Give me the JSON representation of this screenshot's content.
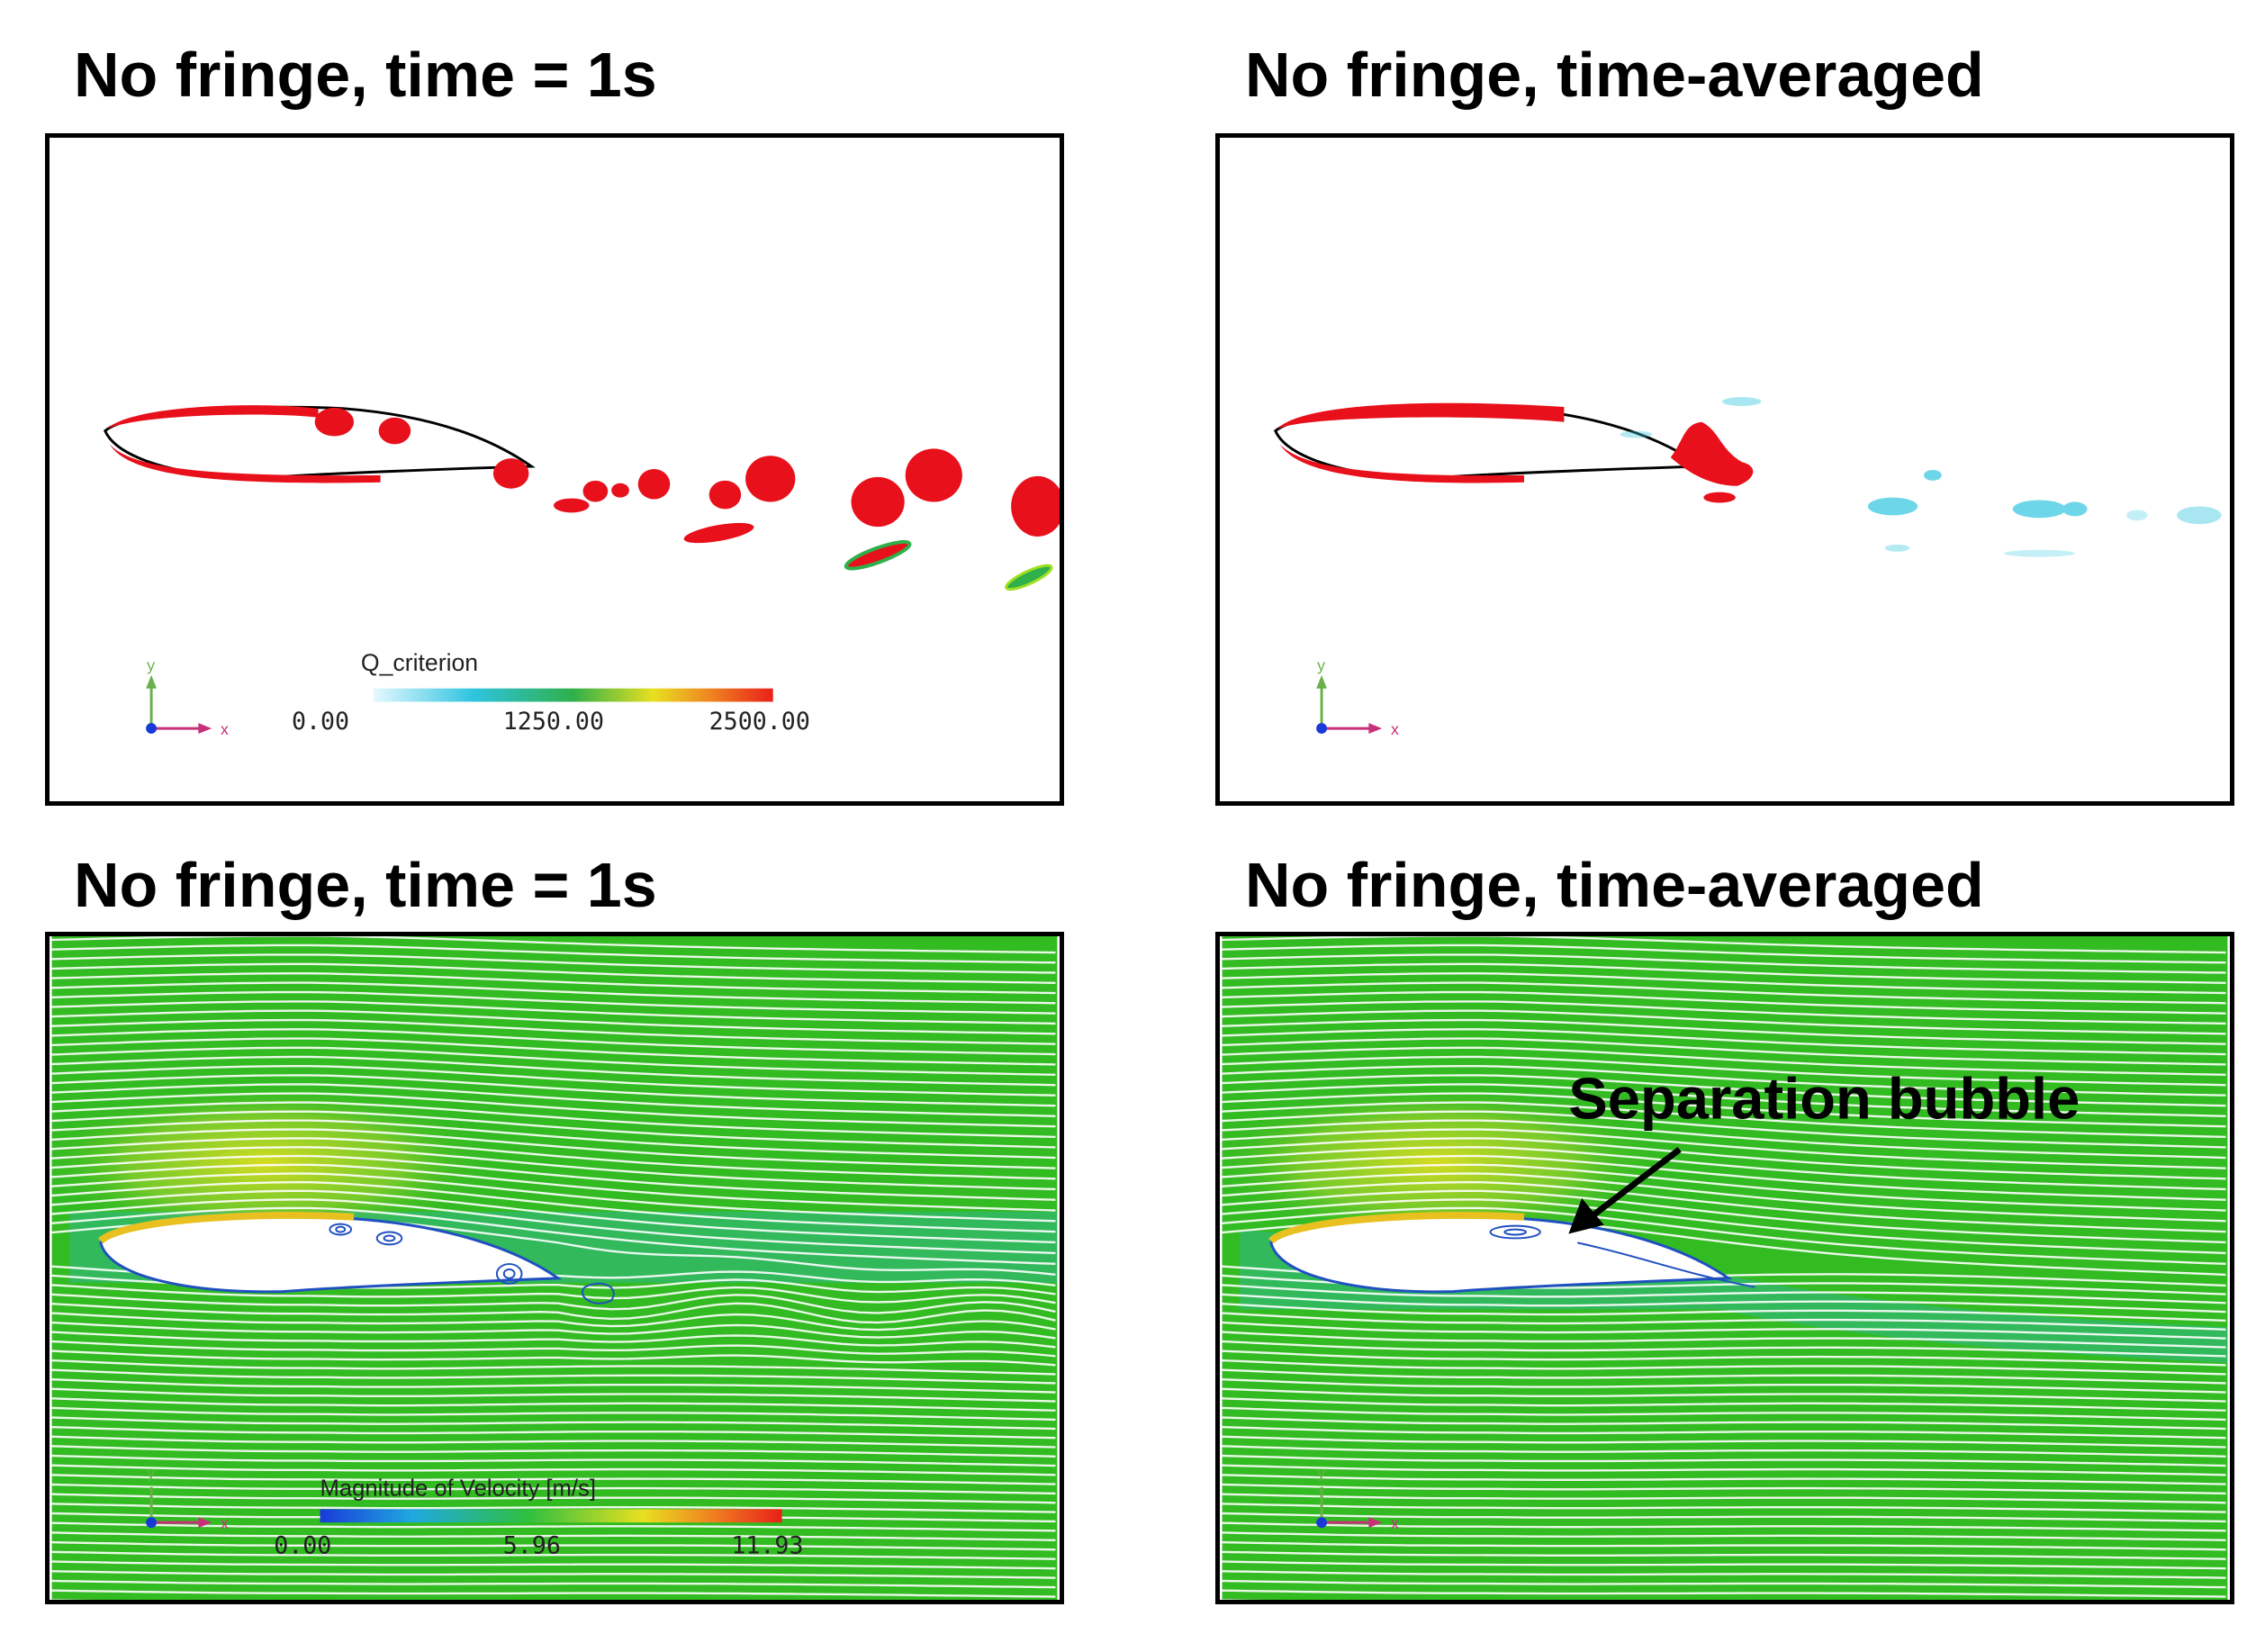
{
  "panels": {
    "top_left": {
      "title": "No fringe, time = 1s"
    },
    "top_right": {
      "title": "No fringe, time-averaged"
    },
    "bottom_left": {
      "title": "No fringe, time = 1s"
    },
    "bottom_right": {
      "title": "No fringe, time-averaged"
    }
  },
  "q_legend": {
    "title": "Q_criterion",
    "ticks": [
      "0.00",
      "1250.00",
      "2500.00"
    ],
    "colors": [
      "#e6f8ff",
      "#2ec4e0",
      "#2fb04a",
      "#e8e020",
      "#f08020",
      "#e8201a"
    ]
  },
  "v_legend": {
    "title": "Magnitude of Velocity [m/s]",
    "ticks": [
      "0.00",
      "5.96",
      "11.93"
    ],
    "colors": [
      "#1a3ad8",
      "#1fa8e0",
      "#2fbf40",
      "#e8e020",
      "#f08020",
      "#e8201a"
    ]
  },
  "axes": {
    "x": "x",
    "y": "y"
  },
  "annotation": {
    "text": "Separation bubble"
  },
  "colors": {
    "vortex": "#e8101a",
    "field": "#33bb22",
    "streamline": "#ffffff"
  }
}
